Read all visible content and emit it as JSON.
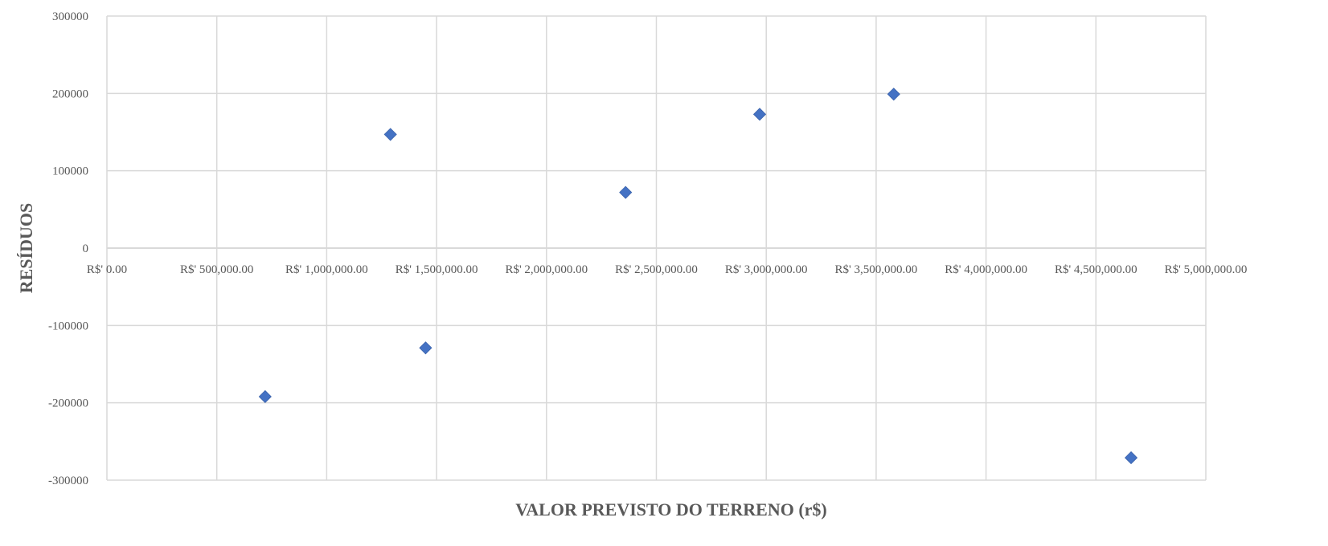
{
  "chart_data": {
    "type": "scatter",
    "title": "",
    "xlabel": "VALOR PREVISTO DO TERRENO (r$)",
    "ylabel": "RESÍDUOS",
    "xlim": [
      0,
      5000000
    ],
    "ylim": [
      -300000,
      300000
    ],
    "x_ticks": [
      0,
      500000,
      1000000,
      1500000,
      2000000,
      2500000,
      3000000,
      3500000,
      4000000,
      4500000,
      5000000
    ],
    "x_tick_labels": [
      "R$' 0.00",
      "R$' 500,000.00",
      "R$' 1,000,000.00",
      "R$' 1,500,000.00",
      "R$' 2,000,000.00",
      "R$' 2,500,000.00",
      "R$' 3,000,000.00",
      "R$' 3,500,000.00",
      "R$' 4,000,000.00",
      "R$' 4,500,000.00",
      "R$' 5,000,000.00"
    ],
    "y_ticks": [
      300000,
      200000,
      100000,
      0,
      -100000,
      -200000,
      -300000
    ],
    "y_tick_labels": [
      "300000",
      "200000",
      "100000",
      "0",
      "-100000",
      "-200000",
      "-300000"
    ],
    "grid": true,
    "marker_color": "#4472c4",
    "marker": "diamond",
    "points": [
      {
        "x": 720000,
        "y": -192000
      },
      {
        "x": 1290000,
        "y": 147000
      },
      {
        "x": 1450000,
        "y": -129000
      },
      {
        "x": 2360000,
        "y": 72000
      },
      {
        "x": 2970000,
        "y": 173000
      },
      {
        "x": 3580000,
        "y": 199000
      },
      {
        "x": 4660000,
        "y": -271000
      }
    ]
  }
}
